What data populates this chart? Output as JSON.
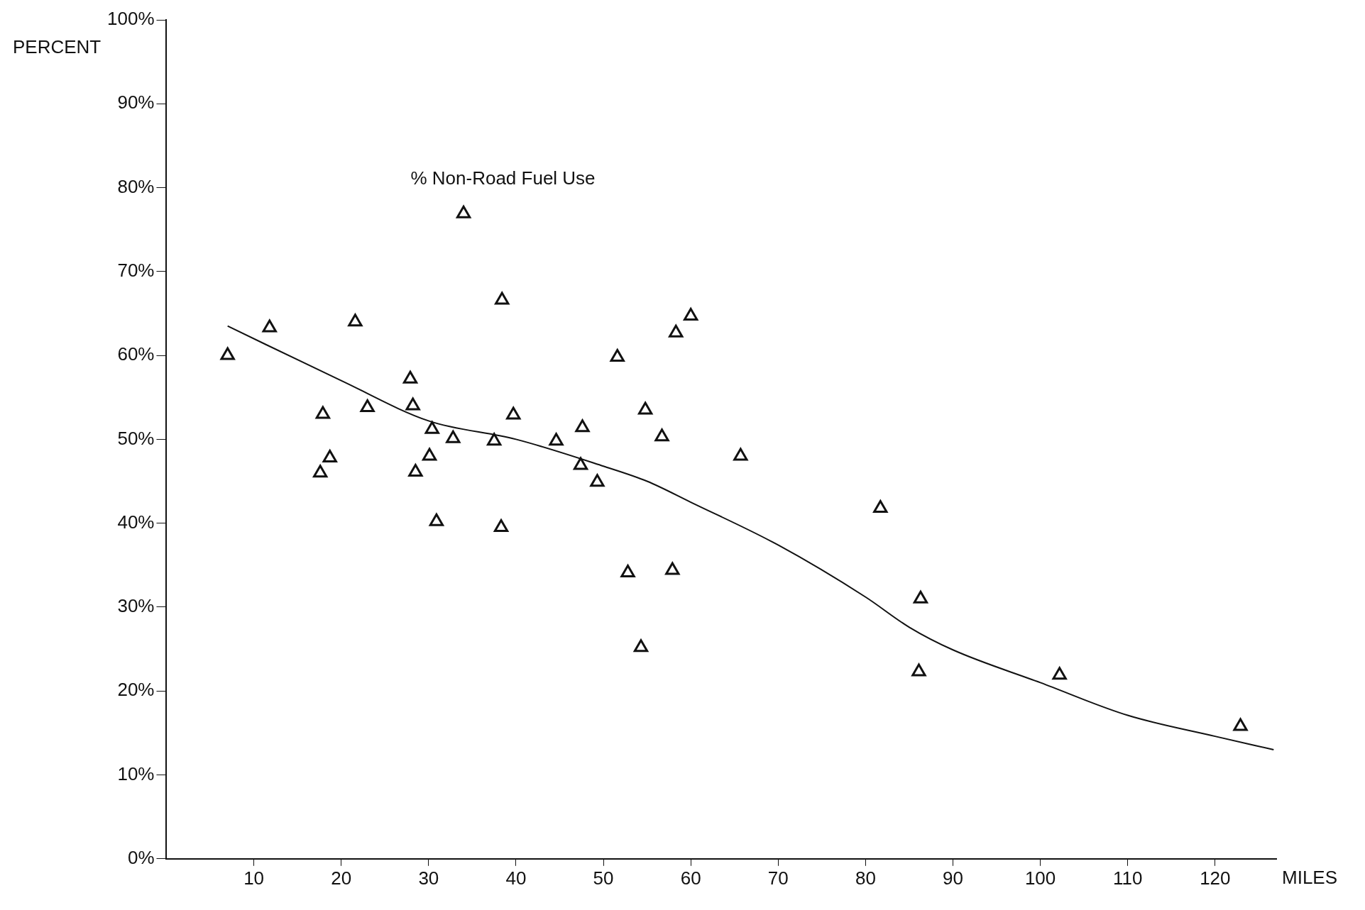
{
  "chart_data": {
    "type": "scatter",
    "xlabel": "MILES",
    "ylabel": "PERCENT",
    "annotations": [
      "% Non-Road Fuel Use"
    ],
    "xlim": [
      0,
      127
    ],
    "xticks": [
      10,
      20,
      30,
      40,
      50,
      60,
      70,
      80,
      90,
      100,
      110,
      120
    ],
    "ylim": [
      0,
      100
    ],
    "yticks": [
      {
        "value": 0,
        "label": "0%"
      },
      {
        "value": 10,
        "label": "10%"
      },
      {
        "value": 20,
        "label": "20%"
      },
      {
        "value": 30,
        "label": "30%"
      },
      {
        "value": 40,
        "label": "40%"
      },
      {
        "value": 50,
        "label": "50%"
      },
      {
        "value": 60,
        "label": "60%"
      },
      {
        "value": 70,
        "label": "70%"
      },
      {
        "value": 80,
        "label": "80%"
      },
      {
        "value": 90,
        "label": "90%"
      },
      {
        "value": 100,
        "label": "100%"
      }
    ],
    "grid": false,
    "legend": false,
    "series": [
      {
        "marker": "triangle",
        "color": "#111111",
        "x": [
          7,
          11.8,
          21.6,
          17.9,
          17.6,
          18.7,
          23,
          27.9,
          28.2,
          28.5,
          30.4,
          30.1,
          30.9,
          32.8,
          34,
          37.5,
          38.4,
          38.3,
          39.7,
          44.6,
          47.6,
          47.4,
          49.3,
          51.6,
          52.8,
          54.8,
          54.3,
          56.7,
          57.9,
          58.3,
          60,
          65.7,
          81.7,
          86.3,
          86.1,
          102.2,
          122.9
        ],
        "values": [
          60,
          63.3,
          64,
          53,
          46,
          47.8,
          53.8,
          57.2,
          54,
          46.1,
          51.2,
          48,
          40.2,
          50.1,
          76.9,
          49.8,
          66.6,
          39.5,
          52.9,
          49.8,
          51.4,
          46.9,
          44.9,
          59.8,
          34.1,
          53.5,
          25.2,
          50.3,
          34.4,
          62.7,
          64.7,
          48,
          41.8,
          31,
          22.3,
          21.9,
          15.8
        ]
      },
      {
        "type": "line",
        "marker": "none",
        "color": "#111111",
        "x": [
          7,
          20,
          30,
          40,
          50,
          55,
          60,
          70,
          80,
          85,
          90,
          100,
          110,
          120,
          126.7
        ],
        "values": [
          63.5,
          57,
          52.2,
          50,
          46.8,
          45,
          42.5,
          37.4,
          31.2,
          27.6,
          24.9,
          21,
          17.1,
          14.6,
          13
        ]
      }
    ]
  }
}
